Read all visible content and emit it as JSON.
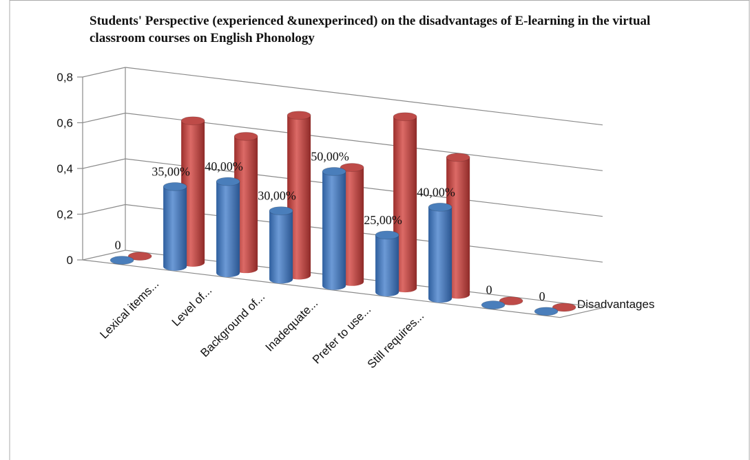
{
  "chart_data": {
    "type": "bar3d",
    "title": "Students' Perspective (experienced &unexperinced) on the disadvantages of E-learning in the virtual classroom courses on English Phonology",
    "categories": [
      null,
      "Lexical items...",
      "Level of...",
      "Background of...",
      "Inadequate...",
      "Prefer to use...",
      "Still requires...",
      null,
      null
    ],
    "series": [
      {
        "name": "Disadvantages",
        "color": "#4a7ebb",
        "values": [
          0,
          0.35,
          0.4,
          0.3,
          0.5,
          0.25,
          0.4,
          0,
          0
        ],
        "value_labels": [
          "0",
          "35,00%",
          "40,00%",
          "30,00%",
          "50,00%",
          "25,00%",
          "40,00%",
          "0",
          "0"
        ]
      },
      {
        "color": "#be4b48",
        "values": [
          0,
          0.62,
          0.58,
          0.7,
          0.5,
          0.75,
          0.6,
          0,
          0
        ]
      }
    ],
    "ylim": [
      0,
      0.8
    ],
    "yticks": [
      0,
      {
        "value": 0.2,
        "label": "0,2"
      },
      {
        "value": 0.4,
        "label": "0,4"
      },
      {
        "value": 0.6,
        "label": "0,6"
      },
      {
        "value": 0.8,
        "label": "0,8"
      }
    ],
    "grid": true
  }
}
